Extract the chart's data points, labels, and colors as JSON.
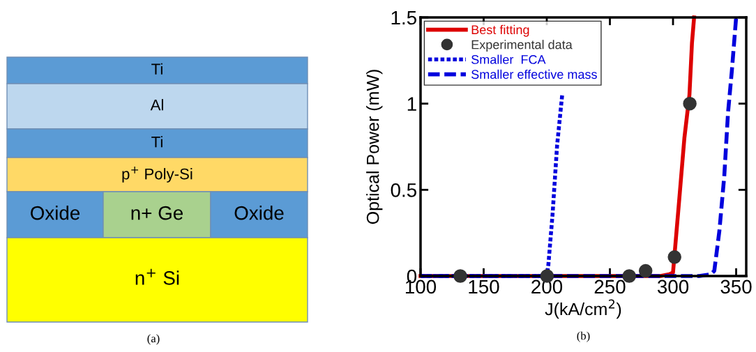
{
  "chart_data": [
    {
      "type": "other",
      "annotations": [
        "Ti",
        "Al",
        "Ti",
        "p$^{+}$ Poly-Si",
        "Oxide",
        "n+ Ge",
        "Oxide",
        "n$^{+}$ Si",
        "(a)"
      ]
    },
    {
      "type": "line",
      "xlabel": "J(kA/cm$^{2}$)",
      "ylabel": "Optical Power (mW)",
      "xlim": [
        100,
        358
      ],
      "ylim": [
        0,
        1.5
      ],
      "xticks": [
        100,
        150,
        200,
        250,
        300,
        350
      ],
      "yticks": [
        0,
        0.5,
        1,
        1.5
      ],
      "legend": "top left",
      "grid": false,
      "annotations": [
        "(b)"
      ],
      "series": [
        {
          "name": "Best fitting",
          "color": "#dd0000",
          "line_style": "solid",
          "x": [
            100,
            290,
            297,
            300,
            305,
            309,
            313,
            315,
            316.7
          ],
          "values": [
            0,
            0,
            0.01,
            0.02,
            0.45,
            0.8,
            1.05,
            1.35,
            1.5
          ]
        },
        {
          "name": "Experimental data",
          "type": "scatter",
          "marker": "circle",
          "color": "#333333",
          "x": [
            131.5,
            200.2,
            265.3,
            278.3,
            301.2,
            313.3
          ],
          "values": [
            0,
            0,
            0,
            0.03,
            0.11,
            1.0
          ]
        },
        {
          "name": "Smaller  FCA",
          "color": "#0000dd",
          "line_style": "dotted",
          "x": [
            100,
            200,
            201.2,
            204.6,
            208.2,
            212.2
          ],
          "values": [
            0,
            0,
            0.06,
            0.36,
            0.76,
            1.05
          ]
        },
        {
          "name": "Smaller effective mass",
          "color": "#0000dd",
          "line_style": "dashed",
          "x": [
            100,
            320.7,
            330,
            332.7,
            336.7,
            340.6,
            343.6,
            346.6,
            350
          ],
          "values": [
            0,
            0,
            0.01,
            0.03,
            0.26,
            0.58,
            0.95,
            1.19,
            1.5
          ]
        }
      ]
    }
  ]
}
